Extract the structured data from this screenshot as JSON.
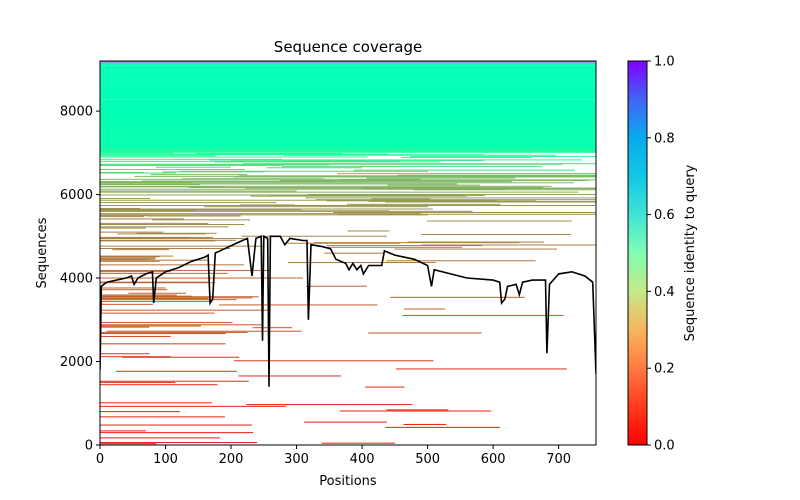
{
  "chart_data": {
    "type": "heatmap",
    "title": "Sequence coverage",
    "xlabel": "Positions",
    "ylabel": "Sequences",
    "xlim": [
      0,
      757
    ],
    "ylim": [
      0,
      9200
    ],
    "xticks": [
      0,
      100,
      200,
      300,
      400,
      500,
      600,
      700
    ],
    "yticks": [
      0,
      2000,
      4000,
      6000,
      8000
    ],
    "grid": false,
    "colorbar": {
      "label": "Sequence identity to query",
      "colormap": "rainbow_r",
      "range": [
        0,
        1
      ],
      "ticks": [
        "0.0",
        "0.2",
        "0.4",
        "0.6",
        "0.8",
        "1.0"
      ],
      "placement": "right"
    },
    "identity_bands": [
      {
        "seq_from": 9150,
        "seq_to": 9200,
        "identity": 0.85,
        "x_from": 0,
        "x_to": 757
      },
      {
        "seq_from": 7100,
        "seq_to": 9150,
        "identity": 0.5,
        "x_from": 0,
        "x_to": 757
      },
      {
        "seq_from": 6800,
        "seq_to": 7100,
        "identity": 0.42,
        "x_from": 0,
        "x_to": 757
      },
      {
        "seq_from": 6500,
        "seq_to": 6800,
        "identity": 0.32,
        "x_from": 0,
        "x_to": 757
      },
      {
        "seq_from": 6000,
        "seq_to": 6500,
        "identity": 0.25,
        "x_from": 0,
        "x_to": 757
      },
      {
        "seq_from": 5400,
        "seq_to": 6000,
        "identity": 0.2,
        "x_from": 0,
        "x_to": 757
      },
      {
        "seq_from": 4300,
        "seq_to": 5400,
        "identity": 0.17,
        "x_from": 0,
        "x_to": 757
      },
      {
        "seq_from": 2500,
        "seq_to": 4300,
        "identity": 0.12,
        "x_from": 0,
        "x_to": 757
      },
      {
        "seq_from": 0,
        "seq_to": 2500,
        "identity": 0.05,
        "x_from": 0,
        "x_to": 757
      }
    ],
    "coverage_line": {
      "name": "coverage",
      "color": "#000000",
      "x": [
        0,
        2,
        10,
        40,
        48,
        52,
        58,
        70,
        80,
        82,
        86,
        100,
        120,
        140,
        160,
        165,
        168,
        172,
        176,
        190,
        210,
        225,
        232,
        238,
        246,
        248,
        250,
        256,
        258,
        260,
        275,
        282,
        290,
        310,
        316,
        318,
        322,
        340,
        352,
        360,
        375,
        380,
        386,
        392,
        398,
        402,
        410,
        430,
        434,
        450,
        480,
        500,
        506,
        510,
        560,
        600,
        610,
        613,
        618,
        622,
        635,
        640,
        645,
        660,
        680,
        682,
        686,
        700,
        720,
        740,
        752,
        757
      ],
      "y": [
        1800,
        3800,
        3900,
        4000,
        4050,
        3850,
        4000,
        4100,
        4150,
        3400,
        4000,
        4150,
        4250,
        4400,
        4500,
        4550,
        3400,
        3500,
        4600,
        4700,
        4850,
        4950,
        4050,
        4950,
        5000,
        2500,
        5000,
        4950,
        1400,
        5000,
        5000,
        4800,
        4950,
        4900,
        4900,
        3000,
        4800,
        4750,
        4700,
        4450,
        4350,
        4200,
        4350,
        4200,
        4300,
        4100,
        4300,
        4300,
        4650,
        4550,
        4450,
        4300,
        3800,
        4200,
        4000,
        3950,
        3900,
        3400,
        3500,
        3800,
        3850,
        3600,
        3900,
        3950,
        3950,
        2200,
        3850,
        4100,
        4150,
        4050,
        3900,
        1700
      ]
    }
  }
}
